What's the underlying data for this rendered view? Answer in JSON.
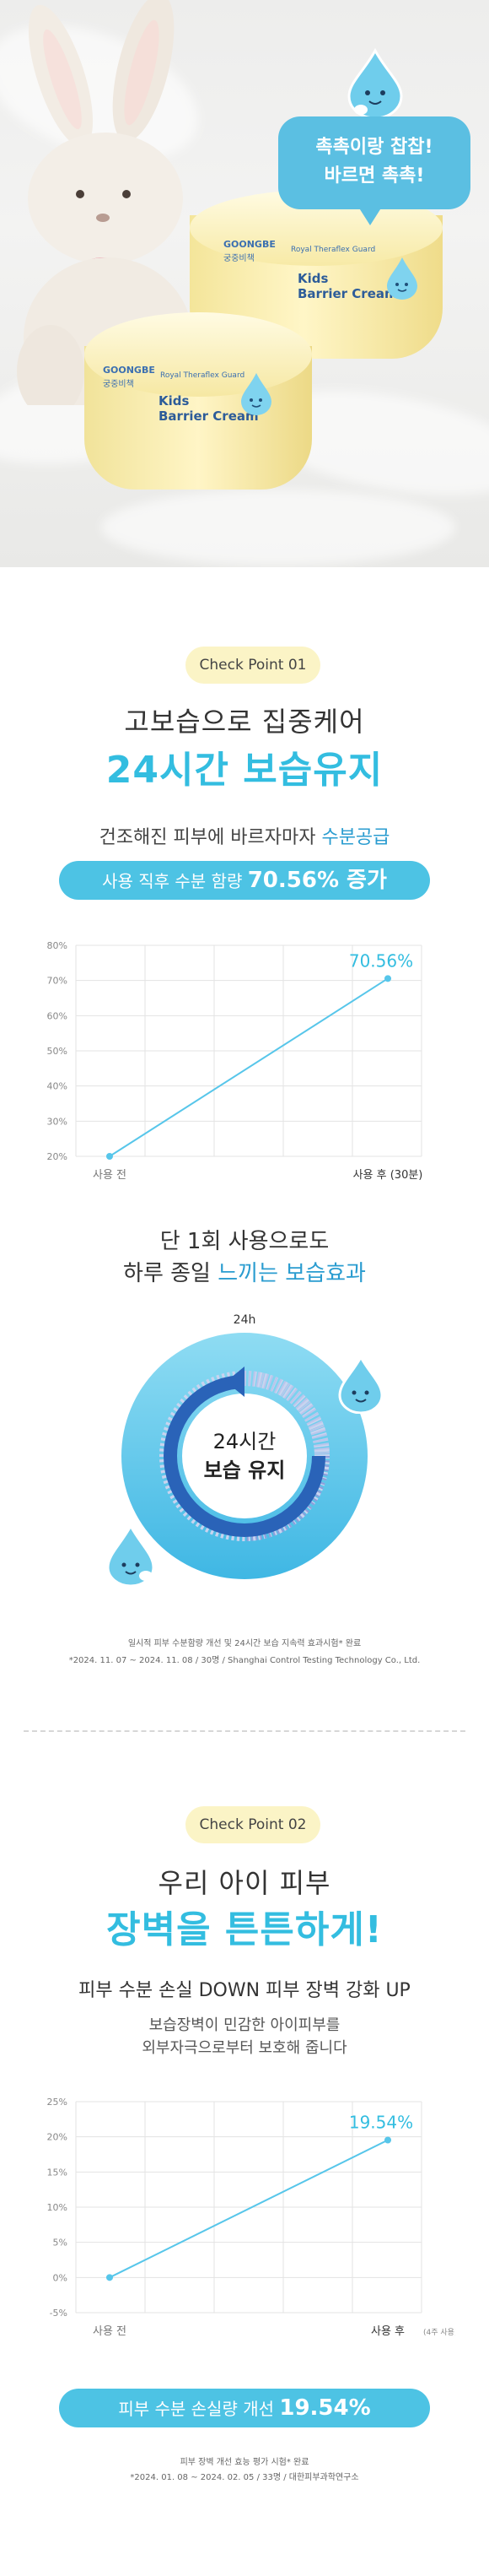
{
  "hero": {
    "bubble_line1": "촉촉이랑 찹찹!",
    "bubble_line2": "바르면 촉촉!",
    "jar_front": {
      "brand": "GOONGBE",
      "brand_kr": "궁중비책",
      "tagline": "Royal Theraflex Guard",
      "name_line1": "Kids",
      "name_line2": "Barrier Cream"
    },
    "jar_back": {
      "brand": "GOONGBE",
      "brand_kr": "궁중비책",
      "tagline": "Royal Theraflex Guard",
      "name_line1": "Kids",
      "name_line2": "Barrier Cream"
    }
  },
  "section1": {
    "checkpoint": "Check Point 01",
    "headline_1": "고보습으로 집중케어",
    "headline_2": "24시간 보습유지",
    "sub_prefix": "건조해진 피부에 바르자마자 ",
    "sub_highlight": "수분공급",
    "banner_prefix": "사용 직후 수분 함량 ",
    "banner_value": "70.56% 증가",
    "chart_data": {
      "type": "line",
      "categories": [
        "사용 전",
        "사용 후 (30분)"
      ],
      "series": [
        {
          "values": [
            20,
            70.56
          ]
        }
      ],
      "ylim": [
        20,
        80
      ],
      "yticks": [
        "20%",
        "30%",
        "40%",
        "50%",
        "60%",
        "70%",
        "80%"
      ],
      "data_label": "70.56%",
      "grid": true
    },
    "day_title_1": "단 1회 사용으로도",
    "day_title_2_prefix": "하루 종일 ",
    "day_title_2_highlight": "느끼는 보습효과",
    "clock_label": "24h",
    "clock_center_1": "24시간",
    "clock_center_2": "보습 유지",
    "note_1": "일시적 피부 수분함량 개선 및 24시간 보습 지속력 효과시험* 완료",
    "note_2": "*2024. 11. 07 ~ 2024. 11. 08 / 30명 / Shanghai Control Testing Technology Co., Ltd."
  },
  "section2": {
    "checkpoint": "Check Point 02",
    "headline_1": "우리 아이 피부",
    "headline_2": "장벽을 튼튼하게!",
    "sub": "피부 수분 손실 DOWN 피부 장벽 강화 UP",
    "desc_1": "보습장벽이 민감한 아이피부를",
    "desc_2": "외부자극으로부터 보호해 줍니다",
    "chart_data": {
      "type": "line",
      "categories": [
        "사용 전",
        "사용 후"
      ],
      "category_note": "(4주 사용)",
      "series": [
        {
          "values": [
            0,
            19.54
          ]
        }
      ],
      "ylim": [
        -5,
        25
      ],
      "yticks": [
        "-5%",
        "0%",
        "5%",
        "10%",
        "15%",
        "20%",
        "25%"
      ],
      "data_label": "19.54%",
      "grid": true
    },
    "banner_prefix": "피부 수분 손실량 개선 ",
    "banner_value": "19.54%",
    "note_1": "피부 장벽 개선 효능 평가 시험* 완료",
    "note_2": "*2024. 01. 08 ~ 2024. 02. 05 / 33명 / 대한피부과학연구소"
  },
  "colors": {
    "accent": "#33bde0",
    "banner": "#4dc3e4",
    "pill": "#fbf4c6",
    "line": "#57c6ea"
  }
}
